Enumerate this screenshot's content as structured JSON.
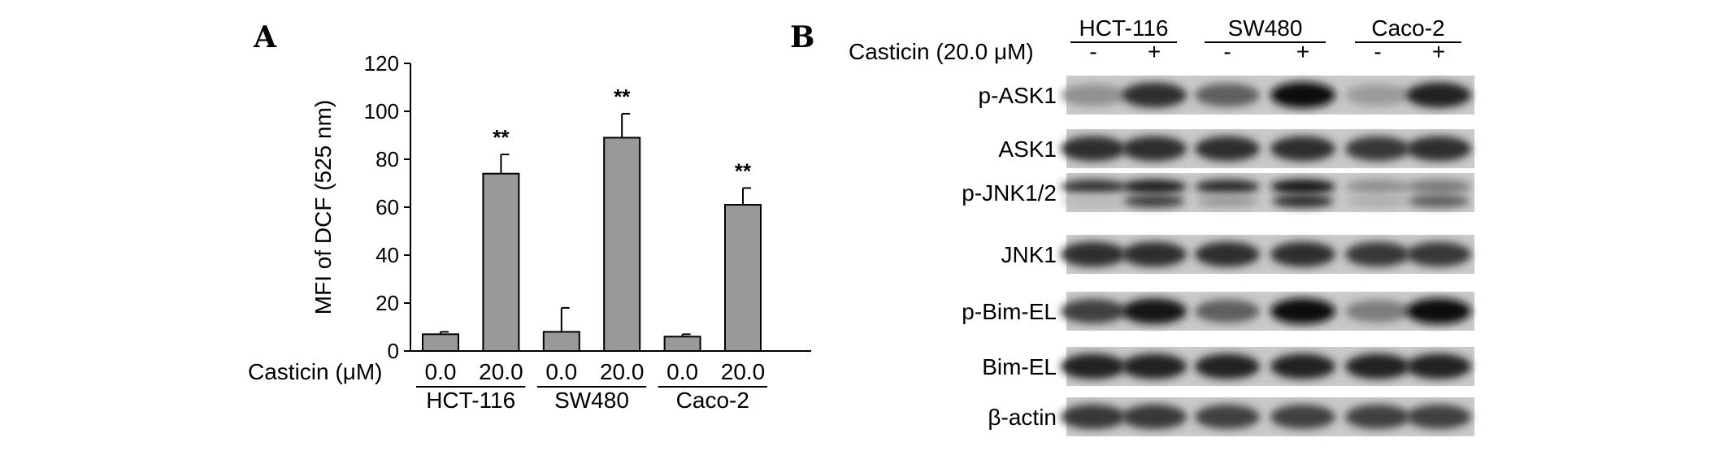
{
  "panels": {
    "a_letter": "A",
    "b_letter": "B"
  },
  "chart_data": {
    "type": "bar",
    "ylabel": "MFI of DCF (525 nm)",
    "ylim": [
      0,
      120
    ],
    "yticks": [
      0,
      20,
      40,
      60,
      80,
      100,
      120
    ],
    "treatment_label": "Casticin (μM)",
    "groups": [
      "HCT-116",
      "SW480",
      "Caco-2"
    ],
    "categories": [
      "0.0",
      "20.0",
      "0.0",
      "20.0",
      "0.0",
      "20.0"
    ],
    "values": [
      7,
      74,
      8,
      89,
      6,
      61
    ],
    "errors": [
      1,
      8,
      10,
      10,
      1,
      7
    ],
    "significance": [
      "",
      "**",
      "",
      "**",
      "",
      "**"
    ],
    "bar_color": "#999999"
  },
  "blot": {
    "treatment_label": "Casticin (20.0 μM)",
    "cell_lines": [
      "HCT-116",
      "SW480",
      "Caco-2"
    ],
    "lanes": [
      "-",
      "+",
      "-",
      "+",
      "-",
      "+"
    ],
    "rows": [
      {
        "label": "p-ASK1",
        "intensity": [
          0.35,
          0.85,
          0.6,
          1.0,
          0.3,
          0.9
        ],
        "double": false
      },
      {
        "label": "ASK1",
        "intensity": [
          0.85,
          0.85,
          0.85,
          0.85,
          0.8,
          0.85
        ],
        "double": false
      },
      {
        "label": "p-JNK1/2",
        "intensity": [
          0.8,
          0.9,
          0.85,
          0.95,
          0.35,
          0.45
        ],
        "double": true,
        "lower": [
          0.15,
          0.75,
          0.3,
          0.85,
          0.2,
          0.6
        ]
      },
      {
        "label": "JNK1",
        "intensity": [
          0.85,
          0.85,
          0.85,
          0.85,
          0.8,
          0.8
        ],
        "double": false
      },
      {
        "label": "p-Bim-EL",
        "intensity": [
          0.75,
          0.95,
          0.6,
          1.0,
          0.45,
          1.0
        ],
        "double": false
      },
      {
        "label": "Bim-EL",
        "intensity": [
          0.9,
          0.9,
          0.9,
          0.9,
          0.9,
          0.9
        ],
        "double": false
      },
      {
        "label": "β-actin",
        "intensity": [
          0.8,
          0.8,
          0.75,
          0.75,
          0.75,
          0.75
        ],
        "double": false
      }
    ]
  }
}
